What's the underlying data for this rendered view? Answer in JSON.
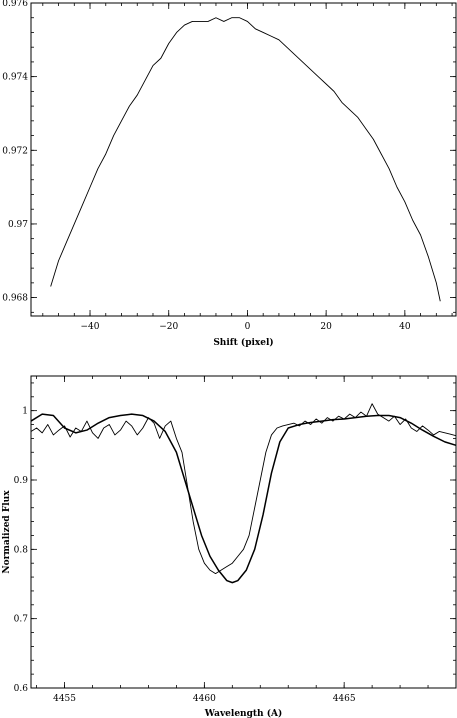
{
  "chart_data": [
    {
      "type": "line",
      "title": "",
      "xlabel": "Shift (pixel)",
      "ylabel": "",
      "xlim": [
        -55,
        53
      ],
      "ylim": [
        0.9675,
        0.976
      ],
      "xticks": [
        -40,
        -20,
        0,
        20,
        40
      ],
      "xtick_labels": [
        "−40",
        "−20",
        "0",
        "20",
        "40"
      ],
      "xminor_step": 4,
      "yticks": [
        0.968,
        0.97,
        0.972,
        0.974,
        0.976
      ],
      "ytick_labels": [
        "0.968",
        "0.97",
        "0.972",
        "0.974",
        "0.976"
      ],
      "yminor_step": 0.0004,
      "grid": false,
      "series": [
        {
          "x": [
            -50,
            -48,
            -46,
            -44,
            -42,
            -40,
            -38,
            -36,
            -34,
            -32,
            -30,
            -28,
            -26,
            -24,
            -22,
            -20,
            -18,
            -16,
            -14,
            -12,
            -10,
            -8,
            -6,
            -4,
            -2,
            0,
            2,
            4,
            6,
            8,
            10,
            12,
            14,
            16,
            18,
            20,
            22,
            24,
            26,
            28,
            30,
            32,
            34,
            36,
            38,
            40,
            42,
            44,
            46,
            48,
            49
          ],
          "y": [
            0.9683,
            0.969,
            0.9695,
            0.97,
            0.9705,
            0.971,
            0.9715,
            0.9719,
            0.9724,
            0.9728,
            0.9732,
            0.9735,
            0.9739,
            0.9743,
            0.9745,
            0.9749,
            0.9752,
            0.9754,
            0.9755,
            0.9755,
            0.9755,
            0.9756,
            0.9755,
            0.9756,
            0.9756,
            0.9755,
            0.9753,
            0.9752,
            0.9751,
            0.975,
            0.9748,
            0.9746,
            0.9744,
            0.9742,
            0.974,
            0.9738,
            0.9736,
            0.9733,
            0.9731,
            0.9729,
            0.9726,
            0.9723,
            0.9719,
            0.9715,
            0.971,
            0.9706,
            0.9701,
            0.9697,
            0.9691,
            0.9684,
            0.9679
          ]
        }
      ]
    },
    {
      "type": "line",
      "title": "",
      "xlabel": "Wavelength (A)",
      "ylabel": "Normalized Flux",
      "xlim": [
        4453.8,
        4469.0
      ],
      "ylim": [
        0.6,
        1.05
      ],
      "xticks": [
        4455,
        4460,
        4465
      ],
      "xtick_labels": [
        "4455",
        "4460",
        "4465"
      ],
      "xminor_step": 1,
      "yticks": [
        0.6,
        0.7,
        0.8,
        0.9,
        1.0
      ],
      "ytick_labels": [
        "0.6",
        "0.7",
        "0.8",
        "0.9",
        "1"
      ],
      "yminor_step": 0.02,
      "grid": false,
      "series": [
        {
          "x": [
            4453.8,
            4454.0,
            4454.2,
            4454.4,
            4454.6,
            4454.8,
            4455.0,
            4455.2,
            4455.4,
            4455.6,
            4455.8,
            4456.0,
            4456.2,
            4456.4,
            4456.6,
            4456.8,
            4457.0,
            4457.2,
            4457.4,
            4457.6,
            4457.8,
            4458.0,
            4458.2,
            4458.4,
            4458.6,
            4458.8,
            4459.0,
            4459.2,
            4459.4,
            4459.6,
            4459.8,
            4460.0,
            4460.2,
            4460.4,
            4460.6,
            4460.8,
            4461.0,
            4461.2,
            4461.4,
            4461.6,
            4461.8,
            4462.0,
            4462.2,
            4462.4,
            4462.6,
            4462.8,
            4463.0,
            4463.2,
            4463.4,
            4463.6,
            4463.8,
            4464.0,
            4464.2,
            4464.4,
            4464.6,
            4464.8,
            4465.0,
            4465.2,
            4465.4,
            4465.6,
            4465.8,
            4466.0,
            4466.2,
            4466.4,
            4466.6,
            4466.8,
            4467.0,
            4467.2,
            4467.4,
            4467.6,
            4467.8,
            4468.0,
            4468.2,
            4468.4,
            4468.6,
            4468.8,
            4469.0
          ],
          "y": [
            0.97,
            0.975,
            0.968,
            0.98,
            0.965,
            0.972,
            0.978,
            0.962,
            0.975,
            0.97,
            0.985,
            0.968,
            0.96,
            0.975,
            0.98,
            0.965,
            0.972,
            0.985,
            0.978,
            0.965,
            0.975,
            0.99,
            0.982,
            0.96,
            0.978,
            0.985,
            0.96,
            0.94,
            0.89,
            0.84,
            0.8,
            0.78,
            0.77,
            0.765,
            0.77,
            0.775,
            0.78,
            0.79,
            0.8,
            0.82,
            0.86,
            0.9,
            0.94,
            0.965,
            0.975,
            0.978,
            0.98,
            0.982,
            0.978,
            0.985,
            0.98,
            0.988,
            0.982,
            0.99,
            0.985,
            0.992,
            0.988,
            0.995,
            0.99,
            0.998,
            0.992,
            1.01,
            0.995,
            0.99,
            0.985,
            0.992,
            0.98,
            0.988,
            0.975,
            0.97,
            0.978,
            0.972,
            0.965,
            0.97,
            0.968,
            0.966,
            0.964
          ]
        },
        {
          "x": [
            4453.8,
            4454.2,
            4454.6,
            4455.0,
            4455.4,
            4455.8,
            4456.2,
            4456.6,
            4457.0,
            4457.4,
            4457.8,
            4458.2,
            4458.6,
            4459.0,
            4459.3,
            4459.6,
            4459.9,
            4460.2,
            4460.5,
            4460.8,
            4461.0,
            4461.2,
            4461.5,
            4461.8,
            4462.1,
            4462.4,
            4462.7,
            4463.0,
            4463.4,
            4463.8,
            4464.2,
            4464.6,
            4465.0,
            4465.4,
            4465.8,
            4466.2,
            4466.6,
            4467.0,
            4467.4,
            4467.8,
            4468.2,
            4468.6,
            4469.0
          ],
          "y": [
            0.985,
            0.995,
            0.993,
            0.975,
            0.968,
            0.972,
            0.982,
            0.99,
            0.993,
            0.995,
            0.993,
            0.985,
            0.97,
            0.94,
            0.9,
            0.86,
            0.82,
            0.79,
            0.77,
            0.755,
            0.752,
            0.755,
            0.77,
            0.8,
            0.85,
            0.91,
            0.955,
            0.975,
            0.98,
            0.983,
            0.985,
            0.987,
            0.988,
            0.99,
            0.992,
            0.993,
            0.993,
            0.99,
            0.982,
            0.972,
            0.963,
            0.955,
            0.95
          ]
        }
      ]
    }
  ]
}
